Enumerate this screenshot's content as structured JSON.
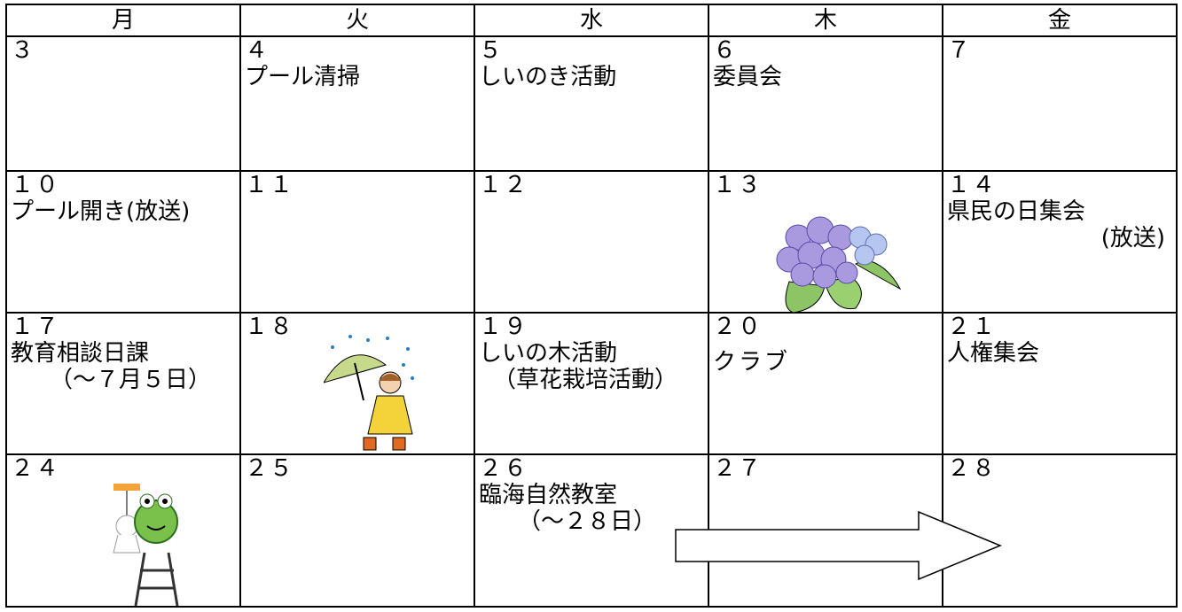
{
  "header": {
    "days": [
      "月",
      "火",
      "水",
      "木",
      "金"
    ]
  },
  "weeks": [
    [
      {
        "date": "３",
        "lines": []
      },
      {
        "date": "４",
        "lines": [
          "プール清掃"
        ]
      },
      {
        "date": "５",
        "lines": [
          "しいのき活動"
        ]
      },
      {
        "date": "６",
        "lines": [
          "委員会"
        ]
      },
      {
        "date": "７",
        "lines": []
      }
    ],
    [
      {
        "date": "１０",
        "lines": [
          "プール開き(放送)"
        ]
      },
      {
        "date": "１１",
        "lines": []
      },
      {
        "date": "１２",
        "lines": []
      },
      {
        "date": "１３",
        "lines": []
      },
      {
        "date": "１４",
        "lines": [
          "県民の日集会",
          "(放送)"
        ]
      }
    ],
    [
      {
        "date": "１７",
        "lines": [
          "教育相談日課",
          "（～７月５日）"
        ]
      },
      {
        "date": "１８",
        "lines": []
      },
      {
        "date": "１９",
        "lines": [
          "しいの木活動",
          "（草花栽培活動）"
        ]
      },
      {
        "date": "２０",
        "lines": [
          "クラブ"
        ]
      },
      {
        "date": "２１",
        "lines": [
          "人権集会"
        ]
      }
    ],
    [
      {
        "date": "２４",
        "lines": []
      },
      {
        "date": "２５",
        "lines": []
      },
      {
        "date": "２６",
        "lines": [
          "臨海自然教室",
          "（～２８日）"
        ]
      },
      {
        "date": "２７",
        "lines": []
      },
      {
        "date": "２８",
        "lines": []
      }
    ]
  ]
}
